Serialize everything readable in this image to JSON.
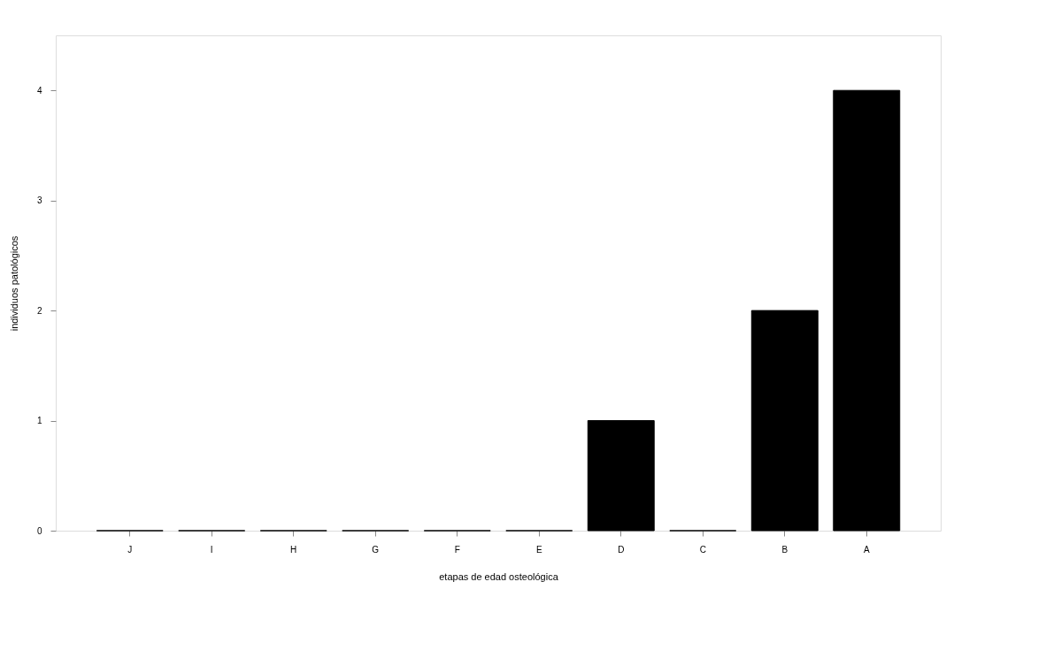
{
  "chart_data": {
    "type": "bar",
    "xlabel": "etapas de edad osteológica",
    "ylabel": "individuos patológicos",
    "categories": [
      "J",
      "I",
      "H",
      "G",
      "F",
      "E",
      "D",
      "C",
      "B",
      "A"
    ],
    "values": [
      0,
      0,
      0,
      0,
      0,
      0,
      1,
      0,
      2,
      4
    ],
    "color": "#000000",
    "ylim": [
      0,
      4.5
    ],
    "yticks": [
      0,
      1,
      2,
      3,
      4
    ],
    "grid": false
  }
}
